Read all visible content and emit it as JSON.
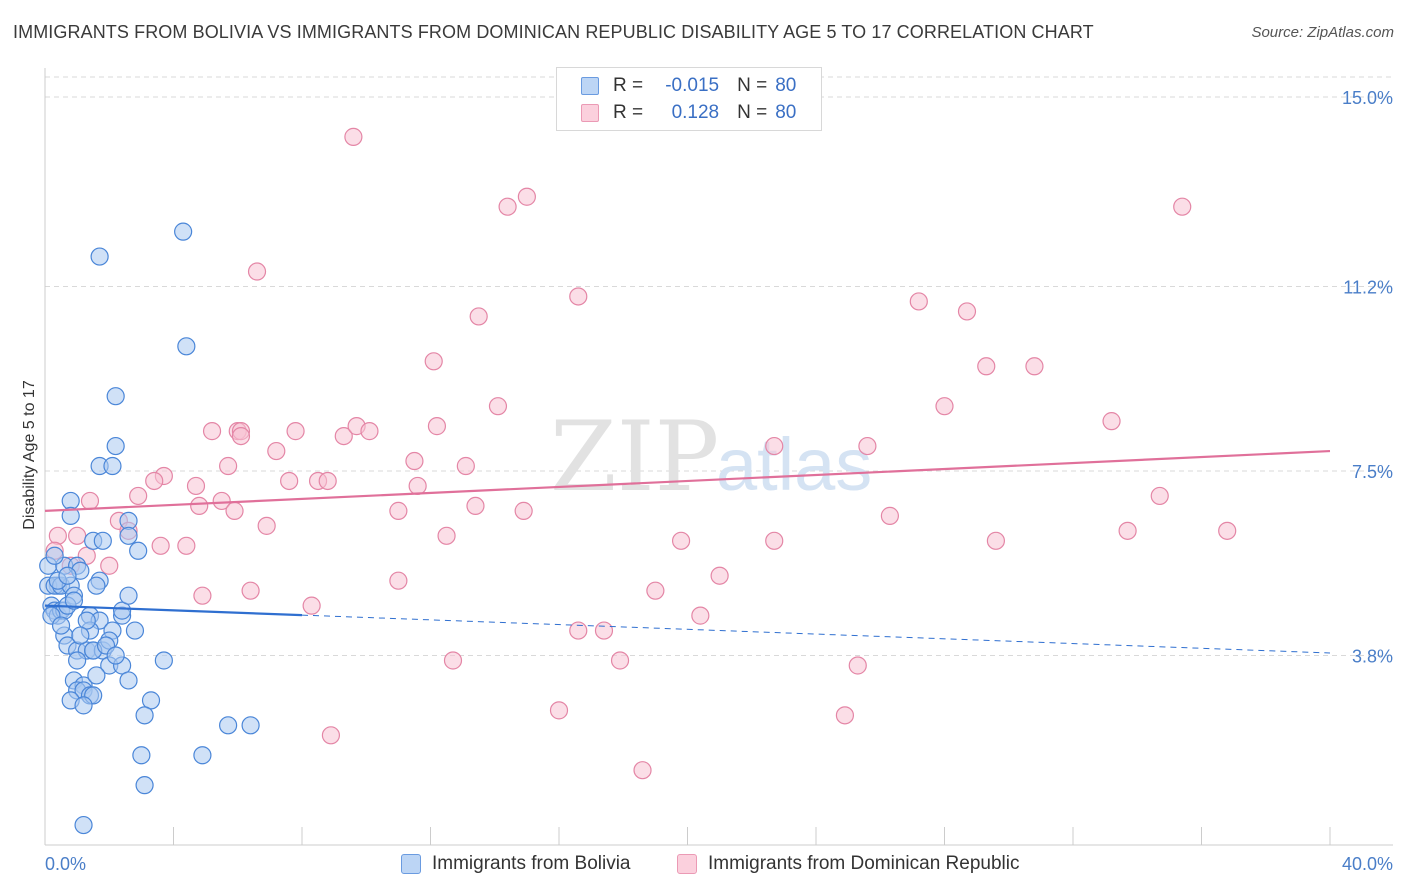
{
  "title": "IMMIGRANTS FROM BOLIVIA VS IMMIGRANTS FROM DOMINICAN REPUBLIC DISABILITY AGE 5 TO 17 CORRELATION CHART",
  "source": "Source: ZipAtlas.com",
  "watermark": {
    "zip": "ZIP",
    "atlas": "atlas"
  },
  "legend": {
    "rows": [
      {
        "r_label": "R =",
        "r_value": "-0.015",
        "n_label": "N =",
        "n_value": "80"
      },
      {
        "r_label": "R =",
        "r_value": "0.128",
        "n_label": "N =",
        "n_value": "80"
      }
    ]
  },
  "bottom_legend": {
    "bolivia": "Immigrants from Bolivia",
    "dominican": "Immigrants from Dominican Republic"
  },
  "colors": {
    "bolivia_fill": "#a9c8f0",
    "bolivia_stroke": "#4a86d8",
    "bolivia_line": "#2f6fd0",
    "dominican_fill": "#f8c3d3",
    "dominican_stroke": "#e486a6",
    "dominican_line": "#e0709a",
    "tick_text": "#4a7ec8",
    "grid": "#d9d9d9"
  },
  "chart_data": {
    "type": "scatter",
    "title": "IMMIGRANTS FROM BOLIVIA VS IMMIGRANTS FROM DOMINICAN REPUBLIC DISABILITY AGE 5 TO 17 CORRELATION CHART",
    "xlabel": "",
    "ylabel": "Disability Age 5 to 17",
    "xlim": [
      0,
      40
    ],
    "ylim": [
      0,
      15.5
    ],
    "x_tick_labels": [
      "0.0%",
      "40.0%"
    ],
    "y_ticks": [
      3.8,
      7.5,
      11.2,
      15.0
    ],
    "y_tick_labels": [
      "3.8%",
      "7.5%",
      "11.2%",
      "15.0%"
    ],
    "grid": true,
    "series": [
      {
        "name": "Immigrants from Bolivia",
        "R": -0.015,
        "N": 80,
        "trend": {
          "x0": 0.0,
          "y0": 4.8,
          "x_solid_end": 8.0,
          "x1": 40.0,
          "y1": 3.85
        },
        "points": [
          [
            4.3,
            12.3
          ],
          [
            1.7,
            11.8
          ],
          [
            4.4,
            10.0
          ],
          [
            2.2,
            9.0
          ],
          [
            2.2,
            8.0
          ],
          [
            1.7,
            7.6
          ],
          [
            2.1,
            7.6
          ],
          [
            0.8,
            6.9
          ],
          [
            0.8,
            6.6
          ],
          [
            2.6,
            6.5
          ],
          [
            2.6,
            6.2
          ],
          [
            1.5,
            6.1
          ],
          [
            1.8,
            6.1
          ],
          [
            2.9,
            5.9
          ],
          [
            0.1,
            5.6
          ],
          [
            0.6,
            5.6
          ],
          [
            1.0,
            5.6
          ],
          [
            0.4,
            5.2
          ],
          [
            1.7,
            5.3
          ],
          [
            0.1,
            5.2
          ],
          [
            0.3,
            5.2
          ],
          [
            0.5,
            5.2
          ],
          [
            0.8,
            5.2
          ],
          [
            1.6,
            5.2
          ],
          [
            0.9,
            5.0
          ],
          [
            0.2,
            4.8
          ],
          [
            0.3,
            4.7
          ],
          [
            0.4,
            4.6
          ],
          [
            0.5,
            4.7
          ],
          [
            0.6,
            4.7
          ],
          [
            0.7,
            4.8
          ],
          [
            0.2,
            4.6
          ],
          [
            1.4,
            4.6
          ],
          [
            1.7,
            4.5
          ],
          [
            2.4,
            4.6
          ],
          [
            2.4,
            4.7
          ],
          [
            0.6,
            4.2
          ],
          [
            1.4,
            4.3
          ],
          [
            2.1,
            4.3
          ],
          [
            2.8,
            4.3
          ],
          [
            0.7,
            4.0
          ],
          [
            1.0,
            3.9
          ],
          [
            1.3,
            3.9
          ],
          [
            1.5,
            3.9
          ],
          [
            1.8,
            3.9
          ],
          [
            1.5,
            3.9
          ],
          [
            2.0,
            3.6
          ],
          [
            2.4,
            3.6
          ],
          [
            3.7,
            3.7
          ],
          [
            1.0,
            3.7
          ],
          [
            0.9,
            3.3
          ],
          [
            2.6,
            3.3
          ],
          [
            1.2,
            3.2
          ],
          [
            1.0,
            3.1
          ],
          [
            1.2,
            3.1
          ],
          [
            1.4,
            3.0
          ],
          [
            1.5,
            3.0
          ],
          [
            0.8,
            2.9
          ],
          [
            3.3,
            2.9
          ],
          [
            1.2,
            2.8
          ],
          [
            3.1,
            2.6
          ],
          [
            5.7,
            2.4
          ],
          [
            6.4,
            2.4
          ],
          [
            3.0,
            1.8
          ],
          [
            4.9,
            1.8
          ],
          [
            3.1,
            1.2
          ],
          [
            1.2,
            0.4
          ],
          [
            0.3,
            5.8
          ],
          [
            1.1,
            5.5
          ],
          [
            2.0,
            4.1
          ],
          [
            0.5,
            4.4
          ],
          [
            1.3,
            4.5
          ],
          [
            2.6,
            5.0
          ],
          [
            0.9,
            4.9
          ],
          [
            1.9,
            4.0
          ],
          [
            0.4,
            5.3
          ],
          [
            2.2,
            3.8
          ],
          [
            1.6,
            3.4
          ],
          [
            0.7,
            5.4
          ],
          [
            1.1,
            4.2
          ]
        ]
      },
      {
        "name": "Immigrants from Dominican Republic",
        "R": 0.128,
        "N": 80,
        "trend": {
          "x0": 0.0,
          "y0": 6.7,
          "x1": 40.0,
          "y1": 7.9
        },
        "points": [
          [
            9.6,
            14.2
          ],
          [
            15.0,
            13.0
          ],
          [
            14.4,
            12.8
          ],
          [
            35.4,
            12.8
          ],
          [
            6.6,
            11.5
          ],
          [
            16.6,
            11.0
          ],
          [
            13.5,
            10.6
          ],
          [
            27.2,
            10.9
          ],
          [
            28.7,
            10.7
          ],
          [
            12.1,
            9.7
          ],
          [
            29.3,
            9.6
          ],
          [
            30.8,
            9.6
          ],
          [
            14.1,
            8.8
          ],
          [
            28.0,
            8.8
          ],
          [
            33.2,
            8.5
          ],
          [
            5.2,
            8.3
          ],
          [
            6.0,
            8.3
          ],
          [
            6.1,
            8.3
          ],
          [
            7.8,
            8.3
          ],
          [
            9.3,
            8.2
          ],
          [
            9.7,
            8.4
          ],
          [
            10.1,
            8.3
          ],
          [
            12.2,
            8.4
          ],
          [
            6.1,
            8.2
          ],
          [
            7.2,
            7.9
          ],
          [
            11.5,
            7.7
          ],
          [
            22.7,
            8.0
          ],
          [
            25.6,
            8.0
          ],
          [
            3.7,
            7.4
          ],
          [
            5.7,
            7.6
          ],
          [
            4.7,
            7.2
          ],
          [
            7.6,
            7.3
          ],
          [
            8.5,
            7.3
          ],
          [
            8.8,
            7.3
          ],
          [
            11.6,
            7.2
          ],
          [
            13.1,
            7.6
          ],
          [
            3.4,
            7.3
          ],
          [
            2.9,
            7.0
          ],
          [
            1.4,
            6.9
          ],
          [
            5.5,
            6.9
          ],
          [
            4.8,
            6.8
          ],
          [
            5.9,
            6.7
          ],
          [
            11.0,
            6.7
          ],
          [
            13.4,
            6.8
          ],
          [
            14.9,
            6.7
          ],
          [
            26.3,
            6.6
          ],
          [
            34.7,
            7.0
          ],
          [
            2.3,
            6.5
          ],
          [
            6.9,
            6.4
          ],
          [
            12.5,
            6.2
          ],
          [
            1.0,
            6.2
          ],
          [
            2.6,
            6.3
          ],
          [
            3.6,
            6.0
          ],
          [
            4.4,
            6.0
          ],
          [
            19.8,
            6.1
          ],
          [
            22.7,
            6.1
          ],
          [
            29.6,
            6.1
          ],
          [
            33.7,
            6.3
          ],
          [
            36.8,
            6.3
          ],
          [
            0.4,
            6.2
          ],
          [
            0.8,
            5.6
          ],
          [
            2.0,
            5.6
          ],
          [
            11.0,
            5.3
          ],
          [
            21.0,
            5.4
          ],
          [
            6.4,
            5.1
          ],
          [
            19.0,
            5.1
          ],
          [
            4.9,
            5.0
          ],
          [
            8.3,
            4.8
          ],
          [
            20.4,
            4.6
          ],
          [
            16.6,
            4.3
          ],
          [
            17.4,
            4.3
          ],
          [
            12.7,
            3.7
          ],
          [
            17.9,
            3.7
          ],
          [
            25.3,
            3.6
          ],
          [
            16.0,
            2.7
          ],
          [
            24.9,
            2.6
          ],
          [
            8.9,
            2.2
          ],
          [
            18.6,
            1.5
          ],
          [
            0.3,
            5.9
          ],
          [
            1.3,
            5.8
          ]
        ]
      }
    ]
  }
}
